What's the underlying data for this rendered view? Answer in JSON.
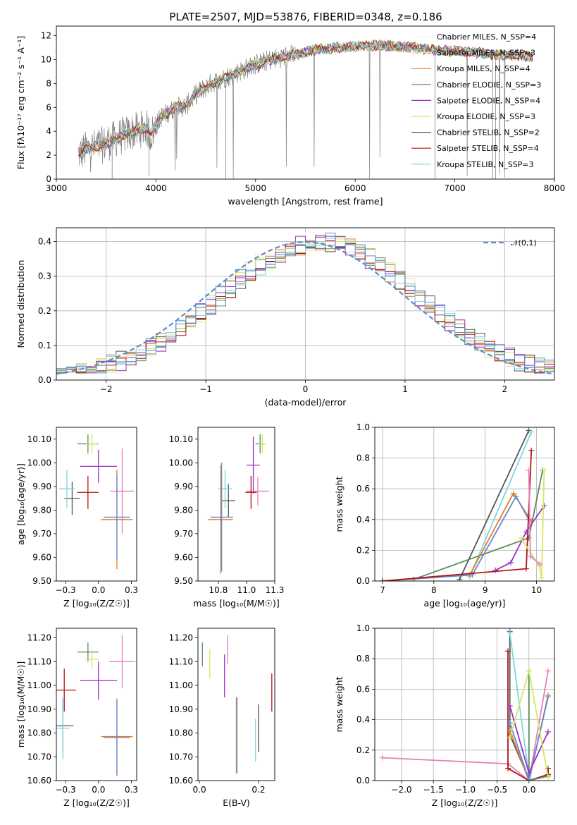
{
  "figure": {
    "title": "PLATE=2507, MJD=53876, FIBERID=0348, z=0.186"
  },
  "chart_data": [
    {
      "id": "spectrum",
      "type": "line",
      "xlabel": "wavelength [Angstrom, rest frame]",
      "ylabel": "Flux [fλ10⁻¹⁷ erg cm⁻² s⁻¹ A⁻¹]",
      "xlim": [
        3000,
        8000
      ],
      "ylim": [
        0,
        12.8
      ],
      "xticks": [
        3000,
        4000,
        5000,
        6000,
        7000,
        8000
      ],
      "yticks": [
        0,
        2,
        4,
        6,
        8,
        10,
        12
      ],
      "legend_position": "right",
      "legend": [
        {
          "label": "Chabrier MILES, N_SSP=4",
          "color": "#f4f4f4"
        },
        {
          "label": "Salpeter MILES, N_SSP=3",
          "color": "#ffd8a8"
        },
        {
          "label": "Kroupa MILES, N_SSP=4",
          "color": "#e67e22"
        },
        {
          "label": "Chabrier ELODIE, N_SSP=3",
          "color": "#5b8a5b"
        },
        {
          "label": "Salpeter ELODIE, N_SSP=4",
          "color": "#9b30c8"
        },
        {
          "label": "Kroupa ELODIE, N_SSP=3",
          "color": "#d4e860"
        },
        {
          "label": "Chabrier STELIB, N_SSP=2",
          "color": "#555555"
        },
        {
          "label": "Salpeter STELIB, N_SSP=4",
          "color": "#b01515"
        },
        {
          "label": "Kroupa STELIB, N_SSP=3",
          "color": "#7ad8e0"
        }
      ],
      "data_color": "#808080",
      "continuum": [
        [
          3220,
          2.1
        ],
        [
          3300,
          2.5
        ],
        [
          3450,
          2.8
        ],
        [
          3600,
          3.4
        ],
        [
          3750,
          3.9
        ],
        [
          3900,
          4.3
        ],
        [
          3950,
          3.7
        ],
        [
          4050,
          5.2
        ],
        [
          4200,
          6.0
        ],
        [
          4300,
          6.1
        ],
        [
          4400,
          7.1
        ],
        [
          4550,
          8.0
        ],
        [
          4700,
          8.5
        ],
        [
          4860,
          9.1
        ],
        [
          5000,
          9.6
        ],
        [
          5200,
          10.1
        ],
        [
          5400,
          10.4
        ],
        [
          5600,
          10.8
        ],
        [
          5800,
          11.0
        ],
        [
          6000,
          11.1
        ],
        [
          6200,
          11.2
        ],
        [
          6400,
          11.1
        ],
        [
          6600,
          11.0
        ],
        [
          6800,
          10.8
        ],
        [
          7000,
          10.7
        ],
        [
          7200,
          10.6
        ],
        [
          7400,
          10.4
        ],
        [
          7600,
          10.4
        ],
        [
          7780,
          10.2
        ]
      ]
    },
    {
      "id": "residuals",
      "type": "histogram",
      "xlabel": "(data-model)/error",
      "ylabel": "Normed distribution",
      "xlim": [
        -2.5,
        2.5
      ],
      "ylim": [
        0,
        0.44
      ],
      "xticks": [
        -2,
        -1,
        0,
        1,
        2
      ],
      "yticks": [
        0.0,
        0.1,
        0.2,
        0.3,
        0.4
      ],
      "grid": true,
      "legend": [
        {
          "label": "𝒩(0,1)",
          "color": "#5b8bd6",
          "style": "dashed"
        }
      ],
      "bin_width": 0.1,
      "reference_curve": "normal(0,1)"
    },
    {
      "id": "age_vs_Z",
      "type": "scatter",
      "xlabel": "Z [log₁₀(Z/Z☉)]",
      "ylabel": "age  [log₁₀(age/yr)]",
      "xlim": [
        -0.32,
        0.29
      ],
      "ylim": [
        9.5,
        10.15
      ],
      "xticks": [
        -0.25,
        0.0,
        0.25
      ],
      "yticks": [
        9.5,
        9.6,
        9.7,
        9.8,
        9.9,
        10.0,
        10.1
      ],
      "points": [
        {
          "x": -0.08,
          "y": 10.08,
          "xerr": 0.08,
          "yerr": 0.04,
          "color": "#5b8a5b"
        },
        {
          "x": -0.05,
          "y": 10.08,
          "xerr": 0.04,
          "yerr": 0.04,
          "color": "#d4e860"
        },
        {
          "x": 0.0,
          "y": 9.985,
          "xerr": 0.14,
          "yerr": 0.07,
          "color": "#9b30c8"
        },
        {
          "x": 0.18,
          "y": 9.88,
          "xerr": 0.09,
          "yerr": 0.18,
          "color": "#e57fba"
        },
        {
          "x": -0.2,
          "y": 9.85,
          "xerr": 0.06,
          "yerr": 0.07,
          "color": "#555555"
        },
        {
          "x": -0.08,
          "y": 9.875,
          "xerr": 0.08,
          "yerr": 0.07,
          "color": "#b01515"
        },
        {
          "x": -0.24,
          "y": 9.89,
          "xerr": 0.06,
          "yerr": 0.08,
          "color": "#7ad8e0"
        },
        {
          "x": 0.14,
          "y": 9.76,
          "xerr": 0.12,
          "yerr": 0.21,
          "color": "#e67e22"
        },
        {
          "x": 0.14,
          "y": 9.77,
          "xerr": 0.1,
          "yerr": 0.18,
          "color": "#5b8bd6"
        }
      ]
    },
    {
      "id": "age_vs_mass",
      "type": "scatter",
      "xlabel": "mass [log₁₀(M/M☉)]",
      "ylabel": "",
      "xlim": [
        10.57,
        11.25
      ],
      "ylim": [
        9.5,
        10.15
      ],
      "xticks": [
        10.75,
        11.0,
        11.25
      ],
      "yticks": [
        9.5,
        9.6,
        9.7,
        9.8,
        9.9,
        10.0,
        10.1
      ],
      "points": [
        {
          "x": 11.12,
          "y": 10.08,
          "xerr": 0.04,
          "yerr": 0.04,
          "color": "#5b8a5b"
        },
        {
          "x": 11.14,
          "y": 10.08,
          "xerr": 0.03,
          "yerr": 0.04,
          "color": "#d4e860"
        },
        {
          "x": 11.06,
          "y": 9.99,
          "xerr": 0.06,
          "yerr": 0.12,
          "color": "#9b30c8"
        },
        {
          "x": 11.1,
          "y": 9.88,
          "xerr": 0.1,
          "yerr": 0.06,
          "color": "#e57fba"
        },
        {
          "x": 10.84,
          "y": 9.84,
          "xerr": 0.06,
          "yerr": 0.07,
          "color": "#555555"
        },
        {
          "x": 11.04,
          "y": 9.875,
          "xerr": 0.05,
          "yerr": 0.07,
          "color": "#b01515"
        },
        {
          "x": 10.81,
          "y": 9.89,
          "xerr": 0.06,
          "yerr": 0.08,
          "color": "#7ad8e0"
        },
        {
          "x": 10.77,
          "y": 9.76,
          "xerr": 0.11,
          "yerr": 0.23,
          "color": "#e67e22"
        },
        {
          "x": 10.78,
          "y": 9.77,
          "xerr": 0.1,
          "yerr": 0.23,
          "color": "#5b8bd6"
        }
      ]
    },
    {
      "id": "weight_vs_age",
      "type": "line",
      "xlabel": "age  [log₁₀(age/yr)]",
      "ylabel": "mass weight",
      "xlim": [
        6.85,
        10.35
      ],
      "ylim": [
        0,
        1.0
      ],
      "xticks": [
        7,
        8,
        9,
        10
      ],
      "yticks": [
        0.0,
        0.2,
        0.4,
        0.6,
        0.8,
        1.0
      ],
      "grid": true,
      "series": [
        {
          "color": "#555555",
          "x": [
            8.5,
            9.85
          ],
          "y": [
            0.01,
            0.98
          ]
        },
        {
          "color": "#7ad8e0",
          "x": [
            8.7,
            9.9
          ],
          "y": [
            0.03,
            0.97
          ]
        },
        {
          "color": "#5b8a5b",
          "x": [
            7.6,
            9.85,
            10.12
          ],
          "y": [
            0.01,
            0.28,
            0.72
          ]
        },
        {
          "color": "#e67e22",
          "x": [
            7.0,
            8.7,
            9.55,
            9.9
          ],
          "y": [
            0.0,
            0.04,
            0.57,
            0.39
          ]
        },
        {
          "color": "#5b8bd6",
          "x": [
            7.0,
            8.75,
            9.6,
            9.85
          ],
          "y": [
            0.0,
            0.04,
            0.55,
            0.4
          ]
        },
        {
          "color": "#b01515",
          "x": [
            7.0,
            9.8,
            9.9
          ],
          "y": [
            0.0,
            0.08,
            0.85
          ]
        },
        {
          "color": "#9b30c8",
          "x": [
            9.2,
            9.5,
            9.8,
            10.15
          ],
          "y": [
            0.07,
            0.12,
            0.32,
            0.49
          ]
        },
        {
          "color": "#d4e860",
          "x": [
            9.7,
            10.05,
            10.1,
            10.15
          ],
          "y": [
            0.28,
            0.1,
            0.02,
            0.72
          ]
        },
        {
          "color": "#e57fba",
          "x": [
            9.85,
            9.88,
            10.07
          ],
          "y": [
            0.72,
            0.16,
            0.11
          ]
        }
      ]
    },
    {
      "id": "mass_vs_Z",
      "type": "scatter",
      "xlabel": "Z [log₁₀(Z/Z☉)]",
      "ylabel": "mass [log₁₀(M/M☉)]",
      "xlim": [
        -0.32,
        0.29
      ],
      "ylim": [
        10.6,
        11.24
      ],
      "xticks": [
        -0.25,
        0.0,
        0.25
      ],
      "yticks": [
        10.6,
        10.7,
        10.8,
        10.9,
        11.0,
        11.1,
        11.2
      ],
      "points": [
        {
          "x": -0.08,
          "y": 11.14,
          "xerr": 0.08,
          "yerr": 0.04,
          "color": "#5b8a5b"
        },
        {
          "x": -0.05,
          "y": 11.11,
          "xerr": 0.05,
          "yerr": 0.04,
          "color": "#d4e860"
        },
        {
          "x": 0.0,
          "y": 11.02,
          "xerr": 0.14,
          "yerr": 0.08,
          "color": "#9b30c8"
        },
        {
          "x": 0.18,
          "y": 11.1,
          "xerr": 0.1,
          "yerr": 0.11,
          "color": "#e57fba"
        },
        {
          "x": -0.27,
          "y": 10.83,
          "xerr": 0.08,
          "yerr": 0.11,
          "color": "#555555"
        },
        {
          "x": -0.26,
          "y": 10.98,
          "xerr": 0.09,
          "yerr": 0.09,
          "color": "#b01515"
        },
        {
          "x": -0.27,
          "y": 10.82,
          "xerr": 0.05,
          "yerr": 0.13,
          "color": "#7ad8e0"
        },
        {
          "x": 0.14,
          "y": 10.785,
          "xerr": 0.12,
          "yerr": 0.16,
          "color": "#e67e22"
        },
        {
          "x": 0.14,
          "y": 10.78,
          "xerr": 0.1,
          "yerr": 0.16,
          "color": "#5b8bd6"
        }
      ]
    },
    {
      "id": "mass_vs_EBV",
      "type": "scatter",
      "xlabel": "E(B-V)",
      "ylabel": "",
      "xlim": [
        -0.005,
        0.255
      ],
      "ylim": [
        10.6,
        11.24
      ],
      "xticks": [
        0.0,
        0.2
      ],
      "yticks": [
        10.6,
        10.7,
        10.8,
        10.9,
        11.0,
        11.1,
        11.2
      ],
      "points": [
        {
          "x": 0.01,
          "y": 11.13,
          "yerr": 0.05,
          "color": "#5b8a5b"
        },
        {
          "x": 0.035,
          "y": 11.09,
          "yerr": 0.06,
          "color": "#d4e860"
        },
        {
          "x": 0.085,
          "y": 11.04,
          "yerr": 0.09,
          "color": "#9b30c8"
        },
        {
          "x": 0.095,
          "y": 11.15,
          "yerr": 0.06,
          "color": "#e57fba"
        },
        {
          "x": 0.2,
          "y": 10.82,
          "yerr": 0.1,
          "color": "#555555"
        },
        {
          "x": 0.245,
          "y": 10.97,
          "yerr": 0.08,
          "color": "#b01515"
        },
        {
          "x": 0.19,
          "y": 10.77,
          "yerr": 0.09,
          "color": "#7ad8e0"
        },
        {
          "x": 0.125,
          "y": 10.79,
          "yerr": 0.16,
          "color": "#e67e22"
        },
        {
          "x": 0.127,
          "y": 10.79,
          "yerr": 0.16,
          "color": "#5b8bd6"
        }
      ]
    },
    {
      "id": "weight_vs_Z",
      "type": "line",
      "xlabel": "Z [log₁₀(Z/Z☉)]",
      "ylabel": "mass weight",
      "xlim": [
        -2.42,
        0.4
      ],
      "ylim": [
        0,
        1.0
      ],
      "xticks": [
        -2.0,
        -1.5,
        -1.0,
        -0.5,
        0.0
      ],
      "yticks": [
        0.0,
        0.2,
        0.4,
        0.6,
        0.8,
        1.0
      ],
      "grid": true,
      "series": [
        {
          "color": "#e57fba",
          "x": [
            -2.3,
            -0.33,
            0.0,
            0.3
          ],
          "y": [
            0.15,
            0.11,
            0.0,
            0.72
          ]
        },
        {
          "color": "#555555",
          "x": [
            -0.3,
            -0.3,
            0.0
          ],
          "y": [
            0.98,
            0.3,
            0.01
          ]
        },
        {
          "color": "#7ad8e0",
          "x": [
            -0.3,
            0.0,
            0.0
          ],
          "y": [
            0.97,
            0.03,
            0.01
          ]
        },
        {
          "color": "#b01515",
          "x": [
            -0.33,
            -0.33,
            0.0,
            0.3,
            0.3
          ],
          "y": [
            0.85,
            0.08,
            0.0,
            0.04,
            0.08
          ]
        },
        {
          "color": "#5b8a5b",
          "x": [
            0.0,
            0.0,
            0.3
          ],
          "y": [
            0.72,
            0.0,
            0.03
          ]
        },
        {
          "color": "#e67e22",
          "x": [
            -0.3,
            0.0,
            0.3
          ],
          "y": [
            0.33,
            0.0,
            0.56
          ]
        },
        {
          "color": "#5b8bd6",
          "x": [
            -0.3,
            0.0,
            0.3
          ],
          "y": [
            0.38,
            0.0,
            0.55
          ]
        },
        {
          "color": "#9b30c8",
          "x": [
            -0.3,
            0.0,
            0.3
          ],
          "y": [
            0.49,
            0.05,
            0.32
          ]
        },
        {
          "color": "#d4e860",
          "x": [
            -0.3,
            0.0,
            0.3
          ],
          "y": [
            0.28,
            0.72,
            0.02
          ]
        }
      ]
    }
  ]
}
